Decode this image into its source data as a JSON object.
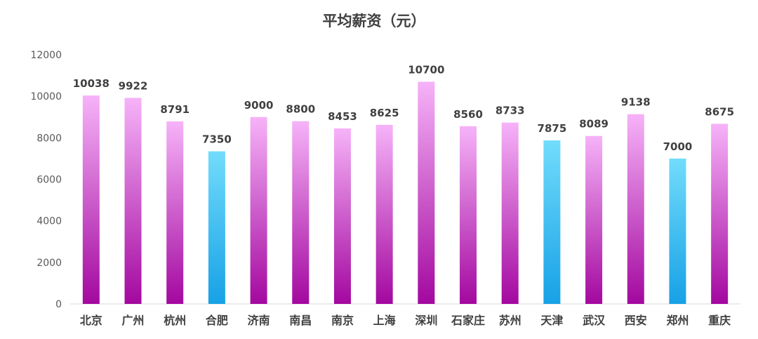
{
  "colors": {
    "pink_top": "#f6b3f8",
    "pink_bottom": "#a3089f",
    "blue_top": "#72dcfb",
    "blue_bottom": "#17a1e6",
    "axis": "#d9d9d9",
    "text": "#404040"
  },
  "chart_data": {
    "type": "bar",
    "title": "平均薪资（元）",
    "xlabel": "",
    "ylabel": "",
    "ylim": [
      0,
      12000
    ],
    "yticks": [
      "0",
      "2000",
      "4000",
      "6000",
      "8000",
      "10000",
      "12000"
    ],
    "grid": false,
    "legend": "none",
    "categories": [
      "北京",
      "广州",
      "杭州",
      "合肥",
      "济南",
      "南昌",
      "南京",
      "上海",
      "深圳",
      "石家庄",
      "苏州",
      "天津",
      "武汉",
      "西安",
      "郑州",
      "重庆"
    ],
    "values": [
      10038,
      9922,
      8791,
      7350,
      9000,
      8800,
      8453,
      8625,
      10700,
      8560,
      8733,
      7875,
      8089,
      9138,
      7000,
      8675
    ],
    "value_labels": [
      "10038",
      "9922",
      "8791",
      "7350",
      "9000",
      "8800",
      "8453",
      "8625",
      "10700",
      "8560",
      "8733",
      "7875",
      "8089",
      "9138",
      "7000",
      "8675"
    ],
    "bar_color_groups": [
      "pink",
      "pink",
      "pink",
      "blue",
      "pink",
      "pink",
      "pink",
      "pink",
      "pink",
      "pink",
      "pink",
      "blue",
      "pink",
      "pink",
      "blue",
      "pink"
    ]
  }
}
